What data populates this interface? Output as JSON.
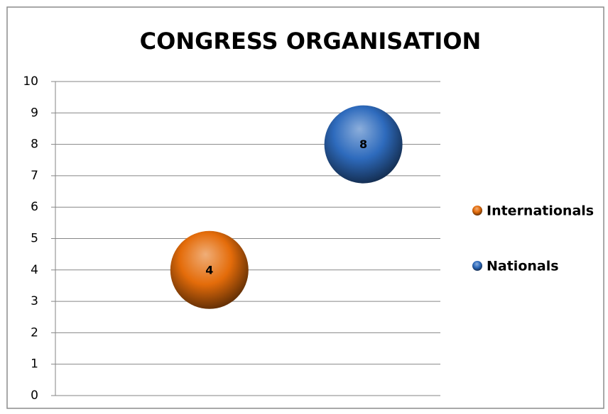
{
  "chart_data": {
    "type": "bubble",
    "title": "CONGRESS ORGANISATION",
    "series": [
      {
        "name": "Internationals",
        "color": "#e46c0a",
        "values": [
          4
        ]
      },
      {
        "name": "Nationals",
        "color": "#2e6bbd",
        "values": [
          8
        ]
      }
    ],
    "ylim": [
      0,
      10
    ],
    "yticks": [
      0,
      1,
      2,
      3,
      4,
      5,
      6,
      7,
      8,
      9,
      10
    ],
    "grid": true,
    "legend": "right"
  }
}
